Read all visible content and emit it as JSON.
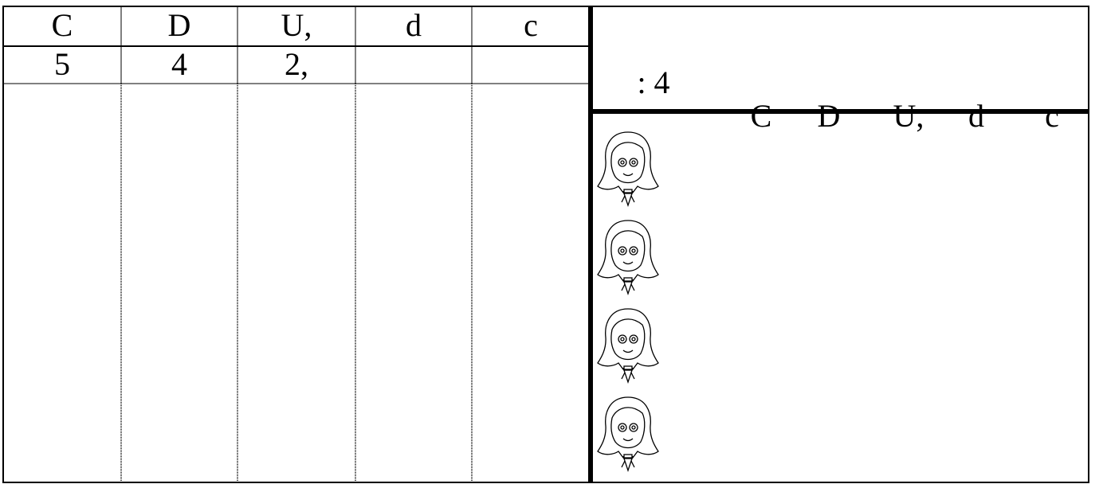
{
  "left_table": {
    "headers": [
      "C",
      "D",
      "U,",
      "d",
      "c"
    ],
    "row": [
      "5",
      "4",
      "2,"
    ]
  },
  "right_panel": {
    "label": ": 4",
    "headers": [
      "C",
      "D",
      "U,",
      "d",
      "c"
    ]
  }
}
